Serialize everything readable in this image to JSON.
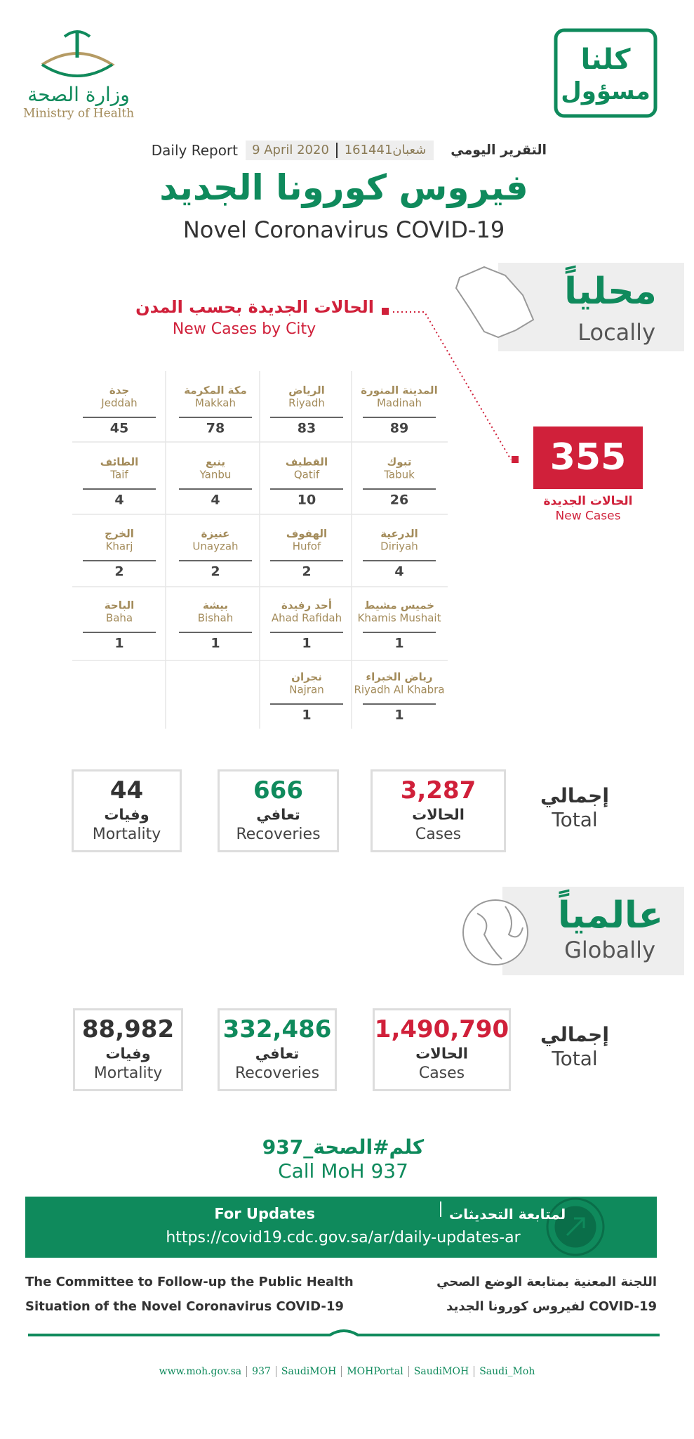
{
  "header": {
    "ministry_ar": "وزارة الصحة",
    "ministry_en": "Ministry of Health",
    "slogan_line1": "كلنا",
    "slogan_line2": "مسؤول",
    "report_ar": "التقرير اليومي",
    "date_hijri": "16شعبان1441",
    "date_gregorian": "9 April 2020",
    "report_en": "Daily Report",
    "title_ar": "فيروس كورونا الجديد",
    "title_en": "Novel Coronavirus COVID-19"
  },
  "local": {
    "heading_ar": "محلياً",
    "heading_en": "Locally",
    "cities_title_ar": "الحالات الجديدة بحسب المدن",
    "cities_title_en": "New Cases by City",
    "new_cases": 355,
    "new_cases_label_ar": "الحالات الجديدة",
    "new_cases_label_en": "New Cases",
    "cities": [
      {
        "ar": "المدينة المنورة",
        "en": "Madinah",
        "count": 89
      },
      {
        "ar": "الرياض",
        "en": "Riyadh",
        "count": 83
      },
      {
        "ar": "مكة المكرمة",
        "en": "Makkah",
        "count": 78
      },
      {
        "ar": "جدة",
        "en": "Jeddah",
        "count": 45
      },
      {
        "ar": "تبوك",
        "en": "Tabuk",
        "count": 26
      },
      {
        "ar": "القطيف",
        "en": "Qatif",
        "count": 10
      },
      {
        "ar": "ينبع",
        "en": "Yanbu",
        "count": 4
      },
      {
        "ar": "الطائف",
        "en": "Taif",
        "count": 4
      },
      {
        "ar": "الدرعية",
        "en": "Diriyah",
        "count": 4
      },
      {
        "ar": "الهفوف",
        "en": "Hufof",
        "count": 2
      },
      {
        "ar": "عنيزة",
        "en": "Unayzah",
        "count": 2
      },
      {
        "ar": "الخرج",
        "en": "Kharj",
        "count": 2
      },
      {
        "ar": "خميس مشيط",
        "en": "Khamis Mushait",
        "count": 1
      },
      {
        "ar": "أحد رفيدة",
        "en": "Ahad Rafidah",
        "count": 1
      },
      {
        "ar": "بيشة",
        "en": "Bishah",
        "count": 1
      },
      {
        "ar": "الباحة",
        "en": "Baha",
        "count": 1
      },
      {
        "ar": "رياض الخبراء",
        "en": "Riyadh Al Khabra",
        "count": 1
      },
      {
        "ar": "نجران",
        "en": "Najran",
        "count": 1
      }
    ],
    "total_ar": "إجمالي",
    "total_en": "Total",
    "stats": [
      {
        "value": "3,287",
        "ar": "الحالات",
        "en": "Cases"
      },
      {
        "value": "666",
        "ar": "تعافي",
        "en": "Recoveries"
      },
      {
        "value": "44",
        "ar": "وفيات",
        "en": "Mortality"
      }
    ]
  },
  "global": {
    "heading_ar": "عالمياً",
    "heading_en": "Globally",
    "total_ar": "إجمالي",
    "total_en": "Total",
    "stats": [
      {
        "value": "1,490,790",
        "ar": "الحالات",
        "en": "Cases"
      },
      {
        "value": "332,486",
        "ar": "تعافي",
        "en": "Recoveries"
      },
      {
        "value": "88,982",
        "ar": "وفيات",
        "en": "Mortality"
      }
    ]
  },
  "call": {
    "hashtag": "كلم#الصحة_937",
    "en": "Call MoH 937"
  },
  "updates": {
    "en": "For Updates",
    "ar": "لمتابعة التحديثات",
    "url": "https://covid19.cdc.gov.sa/ar/daily-updates-ar"
  },
  "committee": {
    "en": [
      "The Committee to Follow-up the Public Health",
      "Situation of the Novel Coronavirus COVID-19"
    ],
    "ar": [
      "اللجنة المعنية بمتابعة الوضع الصحي",
      "لفيروس كورونا الجديد COVID-19"
    ]
  },
  "footer": [
    "www.moh.gov.sa",
    "937",
    "SaudiMOH",
    "MOHPortal",
    "SaudiMOH",
    "Saudi_Moh"
  ]
}
